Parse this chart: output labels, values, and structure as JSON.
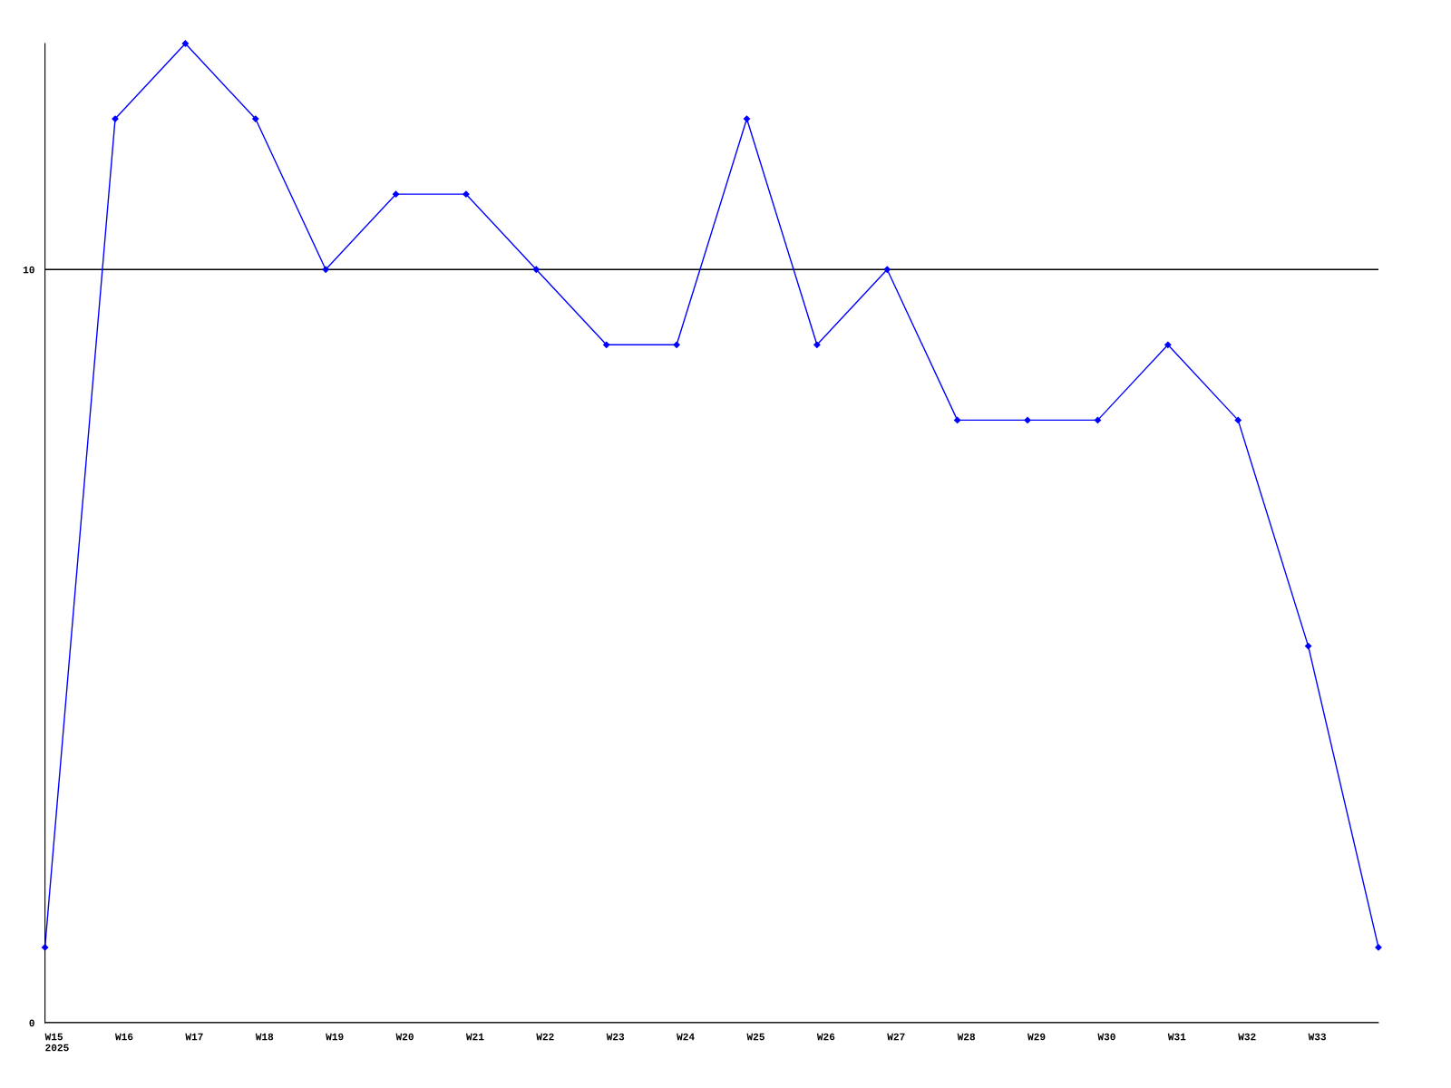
{
  "chart_data": {
    "type": "line",
    "categories": [
      "W15\n2025",
      "W16",
      "W17",
      "W18",
      "W19",
      "W20",
      "W21",
      "W22",
      "W23",
      "W24",
      "W25",
      "W26",
      "W27",
      "W28",
      "W29",
      "W30",
      "W31",
      "W32",
      "W33",
      null
    ],
    "series": [
      {
        "color": "#0000ff",
        "values": [
          1,
          12,
          13,
          12,
          10,
          11,
          11,
          10,
          9,
          9,
          12,
          9,
          10,
          8,
          8,
          8,
          9,
          8,
          5,
          1
        ]
      }
    ],
    "ylim": [
      0,
      13
    ],
    "yticks": [
      0,
      10
    ],
    "grid": "y",
    "marker": "diamond",
    "line_style": "solid"
  }
}
